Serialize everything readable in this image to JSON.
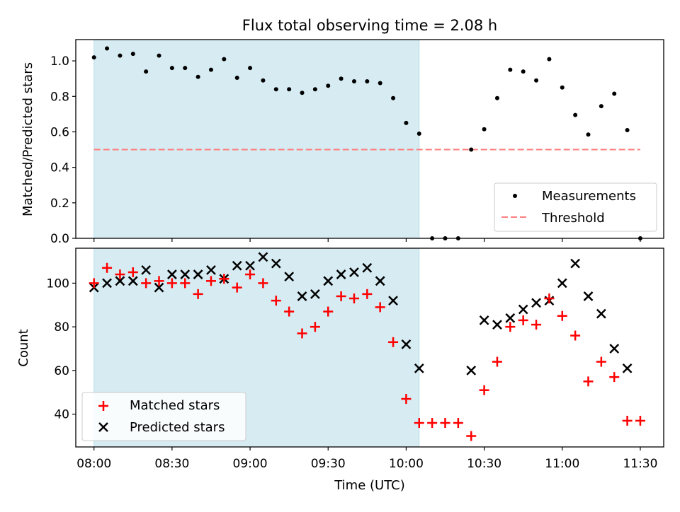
{
  "figure": {
    "title": "Flux total observing time = 2.08 h"
  },
  "chart_data": [
    {
      "type": "scatter",
      "panel": "top",
      "title": "Flux total observing time = 2.08 h",
      "xlabel": "",
      "ylabel": "Matched/Predicted stars",
      "xlim": [
        "07:53",
        "11:39"
      ],
      "ylim": [
        0,
        1.12
      ],
      "yticks": [
        0.0,
        0.2,
        0.4,
        0.6,
        0.8,
        1.0
      ],
      "ytick_labels": [
        "0.0",
        "0.2",
        "0.4",
        "0.6",
        "0.8",
        "1.0"
      ],
      "shaded_interval": [
        "08:00",
        "10:05"
      ],
      "legend_placement": "lower right",
      "series": [
        {
          "name": "Measurements",
          "x": [
            "08:00",
            "08:05",
            "08:10",
            "08:15",
            "08:20",
            "08:25",
            "08:30",
            "08:35",
            "08:40",
            "08:45",
            "08:50",
            "08:55",
            "09:00",
            "09:05",
            "09:10",
            "09:15",
            "09:20",
            "09:25",
            "09:30",
            "09:35",
            "09:40",
            "09:45",
            "09:50",
            "09:55",
            "10:00",
            "10:05",
            "10:10",
            "10:15",
            "10:20",
            "10:25",
            "10:30",
            "10:35",
            "10:40",
            "10:45",
            "10:50",
            "10:55",
            "11:00",
            "11:05",
            "11:10",
            "11:15",
            "11:20",
            "11:25",
            "11:30"
          ],
          "y": [
            1.02,
            1.07,
            1.03,
            1.04,
            0.94,
            1.03,
            0.96,
            0.96,
            0.91,
            0.95,
            1.01,
            0.905,
            0.96,
            0.89,
            0.84,
            0.84,
            0.82,
            0.84,
            0.86,
            0.9,
            0.885,
            0.885,
            0.875,
            0.79,
            0.65,
            0.59,
            0.0,
            0.0,
            0.0,
            0.5,
            0.615,
            0.79,
            0.95,
            0.94,
            0.89,
            1.01,
            0.85,
            0.695,
            0.585,
            0.745,
            0.815,
            0.61,
            0.0
          ],
          "color": "#000000"
        },
        {
          "name": "Threshold",
          "x": [
            "08:00",
            "11:30"
          ],
          "y": [
            0.5,
            0.5
          ],
          "color": "#ff7f7f"
        }
      ]
    },
    {
      "type": "scatter",
      "panel": "bottom",
      "xlabel": "Time (UTC)",
      "ylabel": "Count",
      "xlim": [
        "07:53",
        "11:39"
      ],
      "ylim": [
        25,
        116
      ],
      "yticks": [
        40,
        60,
        80,
        100
      ],
      "xticks": [
        "08:00",
        "08:30",
        "09:00",
        "09:30",
        "10:00",
        "10:30",
        "11:00",
        "11:30"
      ],
      "shaded_interval": [
        "08:00",
        "10:05"
      ],
      "legend_placement": "lower left",
      "series": [
        {
          "name": "Matched stars",
          "marker": "+",
          "color": "#ff0000",
          "x": [
            "08:00",
            "08:05",
            "08:10",
            "08:15",
            "08:20",
            "08:25",
            "08:30",
            "08:35",
            "08:40",
            "08:45",
            "08:50",
            "08:55",
            "09:00",
            "09:05",
            "09:10",
            "09:15",
            "09:20",
            "09:25",
            "09:30",
            "09:35",
            "09:40",
            "09:45",
            "09:50",
            "09:55",
            "10:00",
            "10:05",
            "10:10",
            "10:15",
            "10:20",
            "10:25",
            "10:30",
            "10:35",
            "10:40",
            "10:45",
            "10:50",
            "10:55",
            "11:00",
            "11:05",
            "11:10",
            "11:15",
            "11:20",
            "11:25",
            "11:30"
          ],
          "y": [
            100,
            107,
            104,
            105,
            100,
            101,
            100,
            100,
            95,
            101,
            102,
            98,
            104,
            100,
            92,
            87,
            77,
            80,
            87,
            94,
            93,
            95,
            89,
            73,
            47,
            36,
            36,
            36,
            36,
            30,
            51,
            64,
            80,
            83,
            81,
            93,
            85,
            76,
            55,
            64,
            57,
            37,
            37
          ]
        },
        {
          "name": "Predicted stars",
          "marker": "x",
          "color": "#000000",
          "x": [
            "08:00",
            "08:05",
            "08:10",
            "08:15",
            "08:20",
            "08:25",
            "08:30",
            "08:35",
            "08:40",
            "08:45",
            "08:50",
            "08:55",
            "09:00",
            "09:05",
            "09:10",
            "09:15",
            "09:20",
            "09:25",
            "09:30",
            "09:35",
            "09:40",
            "09:45",
            "09:50",
            "09:55",
            "10:00",
            "10:05",
            "10:25",
            "10:30",
            "10:35",
            "10:40",
            "10:45",
            "10:50",
            "10:55",
            "11:00",
            "11:05",
            "11:10",
            "11:15",
            "11:20",
            "11:25"
          ],
          "y": [
            98,
            100,
            101,
            101,
            106,
            98,
            104,
            104,
            104,
            106,
            102,
            108,
            108,
            112,
            109,
            103,
            94,
            95,
            101,
            104,
            105,
            107,
            101,
            92,
            72,
            61,
            60,
            83,
            81,
            84,
            88,
            91,
            92,
            100,
            109,
            94,
            86,
            70,
            61
          ]
        }
      ]
    }
  ]
}
